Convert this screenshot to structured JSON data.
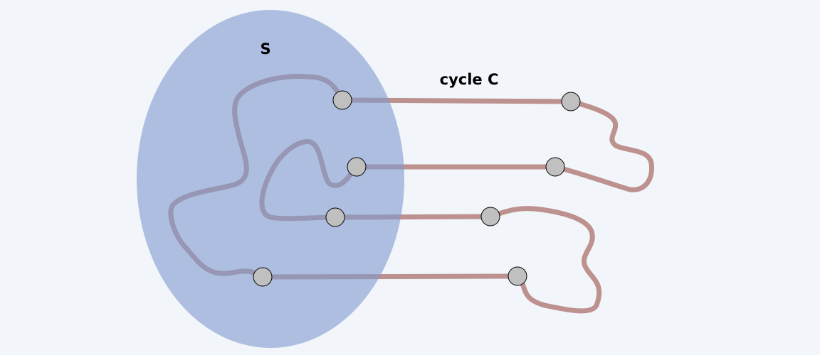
{
  "labels": {
    "set": "S",
    "cycle": "cycle C"
  },
  "colors": {
    "background": "#f2f5f9",
    "set_fill": "#7f9acf",
    "cycle_edge": "#9e5b55",
    "node_fill": "#c0c0c0",
    "node_stroke": "#000000"
  }
}
